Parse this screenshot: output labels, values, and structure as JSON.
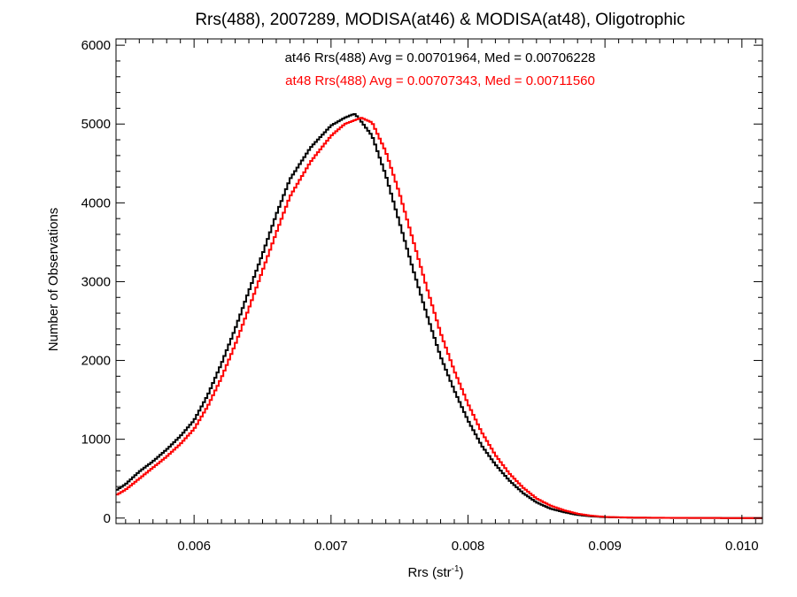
{
  "chart_data": {
    "type": "line",
    "title": "Rrs(488), 2007289, MODISA(at46) & MODISA(at48), Oligotrophic",
    "xlabel_main": "Rrs (str",
    "xlabel_sup": "-1",
    "xlabel_close": ")",
    "ylabel": "Number of Observations",
    "xlim": [
      0.00543,
      0.01015
    ],
    "ylim": [
      -70,
      6080
    ],
    "x_ticks": [
      0.006,
      0.007,
      0.008,
      0.009,
      0.01
    ],
    "x_tick_labels": [
      "0.006",
      "0.007",
      "0.008",
      "0.009",
      "0.010"
    ],
    "y_ticks": [
      0,
      1000,
      2000,
      3000,
      4000,
      5000,
      6000
    ],
    "y_tick_labels": [
      "0",
      "1000",
      "2000",
      "3000",
      "4000",
      "5000",
      "6000"
    ],
    "grid": false,
    "series": [
      {
        "name": "at46",
        "color": "#000000",
        "annotation": "at46 Rrs(488) Avg = 0.00701964, Med = 0.00706228",
        "points": [
          [
            0.00543,
            350
          ],
          [
            0.0055,
            430
          ],
          [
            0.0056,
            590
          ],
          [
            0.0057,
            720
          ],
          [
            0.0058,
            870
          ],
          [
            0.0059,
            1040
          ],
          [
            0.006,
            1240
          ],
          [
            0.0061,
            1560
          ],
          [
            0.0062,
            1960
          ],
          [
            0.0063,
            2400
          ],
          [
            0.0064,
            2880
          ],
          [
            0.0065,
            3350
          ],
          [
            0.0066,
            3850
          ],
          [
            0.0067,
            4300
          ],
          [
            0.00685,
            4700
          ],
          [
            0.007,
            4980
          ],
          [
            0.0071,
            5080
          ],
          [
            0.00717,
            5130
          ],
          [
            0.0072,
            5080
          ],
          [
            0.0073,
            4850
          ],
          [
            0.0074,
            4350
          ],
          [
            0.0075,
            3750
          ],
          [
            0.0076,
            3150
          ],
          [
            0.0077,
            2580
          ],
          [
            0.0078,
            2050
          ],
          [
            0.0079,
            1620
          ],
          [
            0.008,
            1240
          ],
          [
            0.0081,
            920
          ],
          [
            0.0082,
            680
          ],
          [
            0.0083,
            480
          ],
          [
            0.0084,
            320
          ],
          [
            0.0085,
            200
          ],
          [
            0.0086,
            120
          ],
          [
            0.0087,
            75
          ],
          [
            0.0088,
            40
          ],
          [
            0.0089,
            22
          ],
          [
            0.009,
            12
          ],
          [
            0.0092,
            5
          ],
          [
            0.0095,
            2
          ],
          [
            0.0098,
            1
          ],
          [
            0.01015,
            0
          ]
        ]
      },
      {
        "name": "at48",
        "color": "#ff0000",
        "annotation": "at48 Rrs(488) Avg = 0.00707343, Med = 0.00711560",
        "points": [
          [
            0.00543,
            290
          ],
          [
            0.0055,
            360
          ],
          [
            0.0056,
            500
          ],
          [
            0.0057,
            640
          ],
          [
            0.0058,
            780
          ],
          [
            0.0059,
            940
          ],
          [
            0.006,
            1130
          ],
          [
            0.0061,
            1420
          ],
          [
            0.0062,
            1780
          ],
          [
            0.0063,
            2200
          ],
          [
            0.0064,
            2660
          ],
          [
            0.0065,
            3140
          ],
          [
            0.0066,
            3620
          ],
          [
            0.0067,
            4080
          ],
          [
            0.00685,
            4520
          ],
          [
            0.007,
            4850
          ],
          [
            0.0071,
            5000
          ],
          [
            0.00722,
            5080
          ],
          [
            0.0073,
            5020
          ],
          [
            0.0074,
            4650
          ],
          [
            0.0075,
            4120
          ],
          [
            0.0076,
            3520
          ],
          [
            0.0077,
            2920
          ],
          [
            0.0078,
            2350
          ],
          [
            0.0079,
            1870
          ],
          [
            0.008,
            1450
          ],
          [
            0.0081,
            1090
          ],
          [
            0.0082,
            800
          ],
          [
            0.0083,
            570
          ],
          [
            0.0084,
            390
          ],
          [
            0.0085,
            250
          ],
          [
            0.0086,
            160
          ],
          [
            0.0087,
            100
          ],
          [
            0.0088,
            55
          ],
          [
            0.0089,
            30
          ],
          [
            0.009,
            15
          ],
          [
            0.0092,
            6
          ],
          [
            0.0095,
            3
          ],
          [
            0.0098,
            1
          ],
          [
            0.01015,
            0
          ]
        ]
      }
    ]
  }
}
